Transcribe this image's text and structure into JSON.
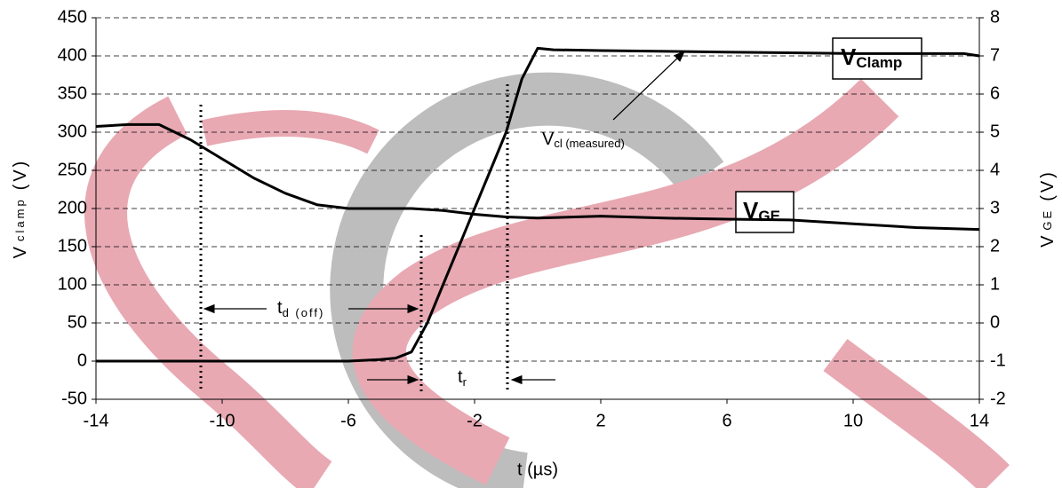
{
  "chart_data": {
    "type": "line",
    "xlabel": "t (µs)",
    "ylabel": [
      "V",
      "clamp",
      "(V)"
    ],
    "y2label": [
      "V",
      "GE",
      "(V)"
    ],
    "xlim": [
      -14,
      14
    ],
    "xticks": [
      -14,
      -10,
      -6,
      -2,
      2,
      6,
      10,
      14
    ],
    "ylim": [
      -50,
      450
    ],
    "yticks": [
      -50,
      0,
      50,
      100,
      150,
      200,
      250,
      300,
      350,
      400,
      450
    ],
    "y2lim": [
      -2,
      8
    ],
    "y2ticks": [
      -2,
      -1,
      0,
      1,
      2,
      3,
      4,
      5,
      6,
      7,
      8
    ],
    "grid": true,
    "series": [
      {
        "name": "VClamp",
        "color": "#000000",
        "x": [
          -14,
          -12,
          -10,
          -8,
          -6,
          -5,
          -4.5,
          -4,
          -3.5,
          -3,
          -2.5,
          -2,
          -1.5,
          -1,
          -0.5,
          0,
          0.5,
          2,
          6,
          10,
          13.5,
          14
        ],
        "values": [
          0,
          0,
          0,
          0,
          0,
          2,
          4,
          12,
          50,
          100,
          150,
          200,
          250,
          300,
          370,
          410,
          408,
          407,
          405,
          403,
          403,
          400
        ]
      },
      {
        "name": "VGE",
        "color": "#000000",
        "axis": "y2",
        "x": [
          -14,
          -13,
          -12,
          -11,
          -10,
          -9,
          -8,
          -7,
          -6,
          -4,
          -3,
          -2,
          -1,
          0,
          2,
          4,
          6,
          8,
          10,
          12,
          14
        ],
        "values": [
          5.15,
          5.2,
          5.2,
          4.8,
          4.3,
          3.8,
          3.4,
          3.1,
          3.0,
          3.0,
          2.95,
          2.85,
          2.78,
          2.75,
          2.8,
          2.75,
          2.72,
          2.7,
          2.6,
          2.5,
          2.45
        ]
      }
    ],
    "annotations": {
      "v_clamp": [
        "V",
        "Clamp"
      ],
      "v_ge": [
        "V",
        "GE"
      ],
      "v_cl": [
        "V",
        "cl (measured)"
      ],
      "td": [
        "t",
        "d (off)"
      ],
      "tr": [
        "t",
        "r"
      ]
    }
  }
}
